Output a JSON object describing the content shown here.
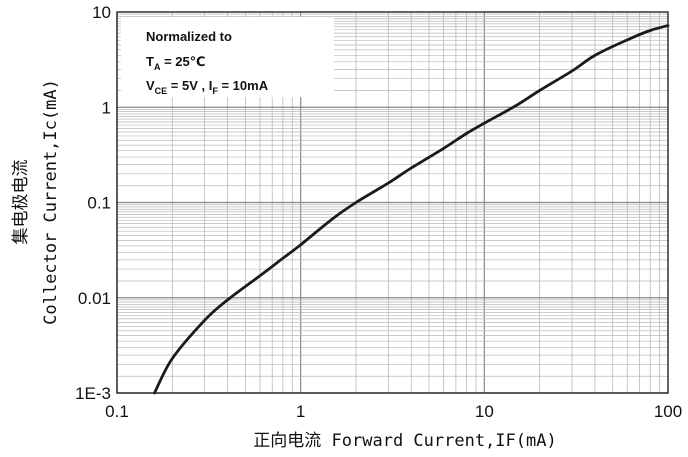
{
  "chart_data": {
    "type": "line",
    "title": "",
    "xlabel": "正向电流 Forward Current,IF(mA)",
    "ylabel_cn": "集电极电流",
    "ylabel": "Collector Current,Ic(mA)",
    "xscale": "log",
    "yscale": "log",
    "xlim": [
      0.1,
      100
    ],
    "ylim": [
      0.001,
      10
    ],
    "x_tick_labels": [
      "0.1",
      "1",
      "10",
      "100"
    ],
    "y_tick_labels": [
      "1E-3",
      "0.01",
      "0.1",
      "1",
      "10"
    ],
    "grid": true,
    "annotation": {
      "line1": "Normalized to",
      "line2_main": "T",
      "line2_sub": "A",
      "line2_rest": " = 25℃",
      "line3_v": "V",
      "line3_vsub": "CE",
      "line3_mid": " = 5V , I",
      "line3_isub": "F",
      "line3_end": " = 10mA"
    },
    "series": [
      {
        "x": [
          0.16,
          0.2,
          0.3,
          0.4,
          0.6,
          0.8,
          1,
          1.5,
          2,
          3,
          4,
          6,
          8,
          10,
          15,
          20,
          30,
          40,
          60,
          80,
          100
        ],
        "values": [
          0.001,
          0.0023,
          0.0058,
          0.0095,
          0.017,
          0.026,
          0.036,
          0.068,
          0.1,
          0.16,
          0.23,
          0.37,
          0.53,
          0.68,
          1.05,
          1.5,
          2.4,
          3.5,
          5.1,
          6.4,
          7.2
        ]
      }
    ]
  },
  "colors": {
    "grid": "#b9b9b9",
    "axis": "#222222",
    "curve": "#1a1a1a",
    "annotation_bg": "#ffffff"
  }
}
